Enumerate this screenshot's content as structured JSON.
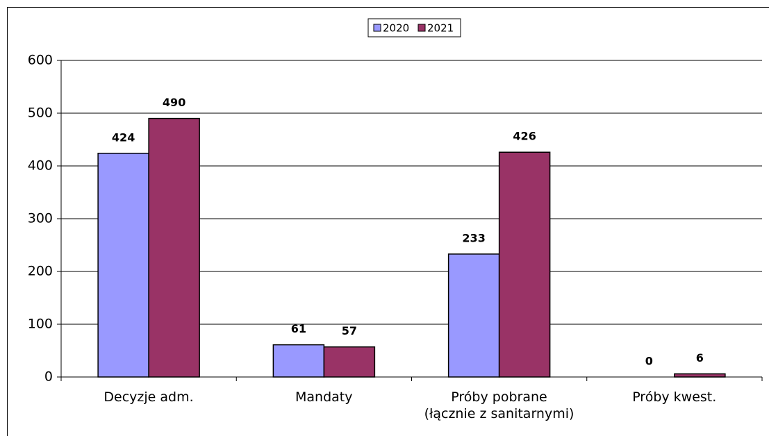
{
  "chart_data": {
    "type": "bar",
    "categories": [
      "Decyzje adm.",
      "Mandaty",
      "Próby pobrane\n(łącznie z sanitarnymi)",
      "Próby kwest."
    ],
    "series": [
      {
        "name": "2020",
        "color": "#9999ff",
        "values": [
          424,
          61,
          233,
          0
        ]
      },
      {
        "name": "2021",
        "color": "#993366",
        "values": [
          490,
          57,
          426,
          6
        ]
      }
    ],
    "ylim": [
      0,
      600
    ],
    "yticks": [
      0,
      100,
      200,
      300,
      400,
      500,
      600
    ],
    "grid": true,
    "legend": "top"
  }
}
